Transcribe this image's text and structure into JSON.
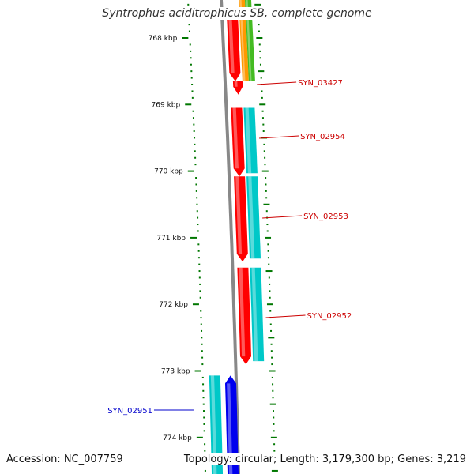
{
  "title": "Syntrophus aciditrophicus SB, complete genome",
  "footer": {
    "accession": "Accession: NC_007759",
    "summary": "Topology: circular; Length: 3,179,300 bp; Genes: 3,219"
  },
  "colors": {
    "backbone": "#888888",
    "tick": "#007700",
    "forward_gene": "#ff0000",
    "cds": "#00c8c8",
    "reverse_gene": "#0000ee",
    "orange_track": "#ff9900",
    "green_track": "#44bb22",
    "label_forward": "#cc0000",
    "label_reverse": "#0000cc"
  },
  "axis": {
    "unit": "kbp",
    "major_ticks": [
      768,
      769,
      770,
      771,
      772,
      773,
      774
    ],
    "tick_labels": [
      "768 kbp",
      "769 kbp",
      "770 kbp",
      "771 kbp",
      "772 kbp",
      "773 kbp",
      "774 kbp"
    ]
  },
  "genes": [
    {
      "label": "SYN_03427",
      "strand": "+",
      "start_kbp": 767.6,
      "end_kbp": 768.65,
      "label_color": "forward"
    },
    {
      "label": "SYN_02954",
      "strand": "+",
      "start_kbp": 769.05,
      "end_kbp": 770.08,
      "label_color": "forward"
    },
    {
      "label": "SYN_02953",
      "strand": "+",
      "start_kbp": 770.08,
      "end_kbp": 771.36,
      "label_color": "forward"
    },
    {
      "label": "SYN_02952",
      "strand": "+",
      "start_kbp": 771.45,
      "end_kbp": 772.9,
      "label_color": "forward"
    },
    {
      "label": "SYN_02951",
      "strand": "-",
      "start_kbp": 773.07,
      "end_kbp": 774.6,
      "label_color": "reverse"
    }
  ]
}
